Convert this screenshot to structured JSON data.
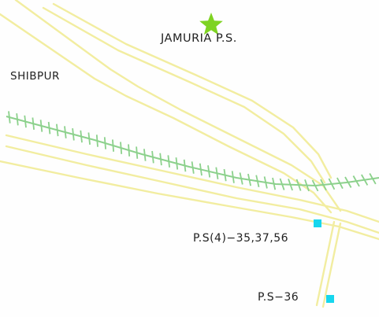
{
  "map": {
    "labels": {
      "police_station": "JAMURIA  P.S.",
      "locality": "SHIBPUR",
      "polling_station_group": "P.S(4)−35,37,56",
      "polling_station_single": "P.S−36"
    },
    "markers": {
      "police_station_icon": "star-icon",
      "polling_station_icon": "square-icon"
    },
    "colors": {
      "background": "#fefefe",
      "road": "#f2eda0",
      "railway": "#8cd18c",
      "star": "#7ed321",
      "polling_marker": "#16d6ee",
      "text": "#1f1f1f"
    }
  }
}
